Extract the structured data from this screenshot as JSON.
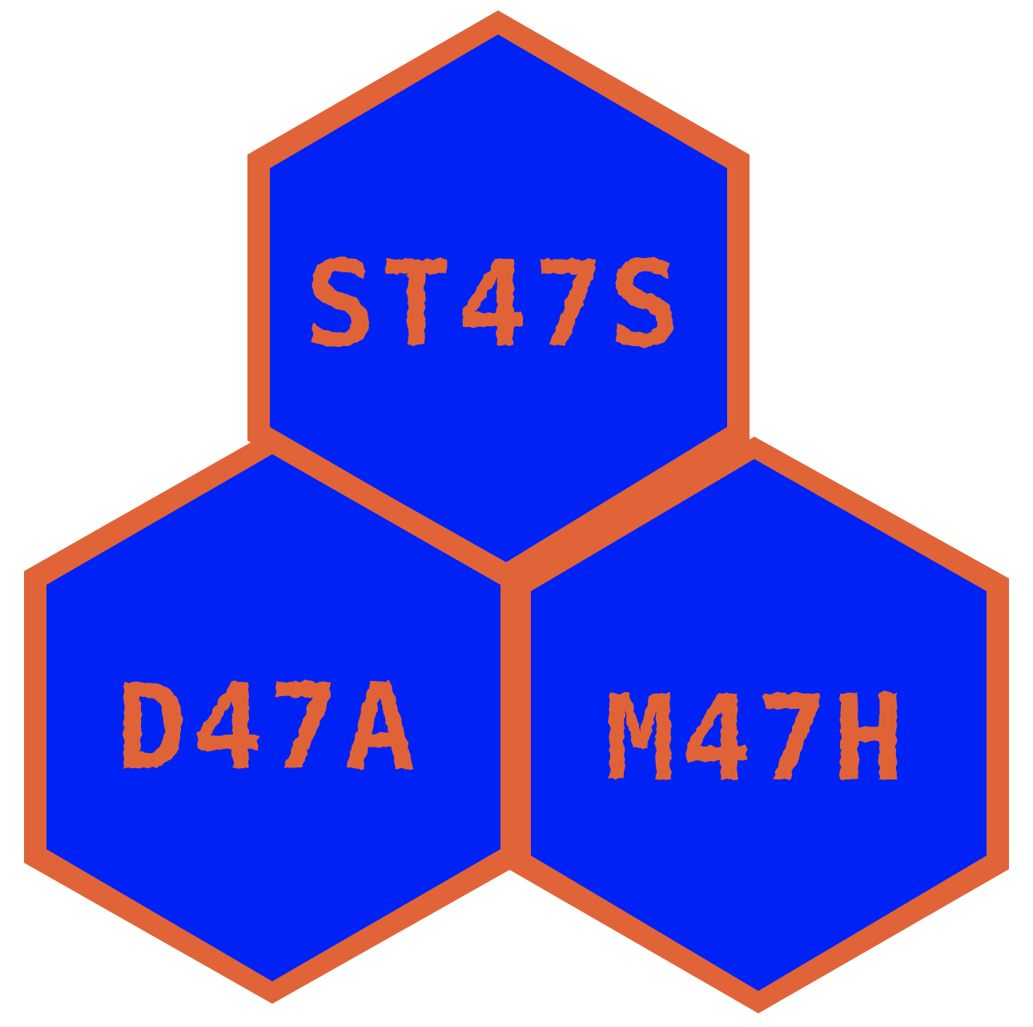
{
  "logo": {
    "colors": {
      "background": "#ffffff",
      "border": "#e06438",
      "fill": "#0022f5",
      "text": "#e06438"
    },
    "hexagons": [
      {
        "id": "top",
        "label": "ST47S"
      },
      {
        "id": "bottom-left",
        "label": "D47A"
      },
      {
        "id": "bottom-right",
        "label": "M47H"
      }
    ]
  }
}
